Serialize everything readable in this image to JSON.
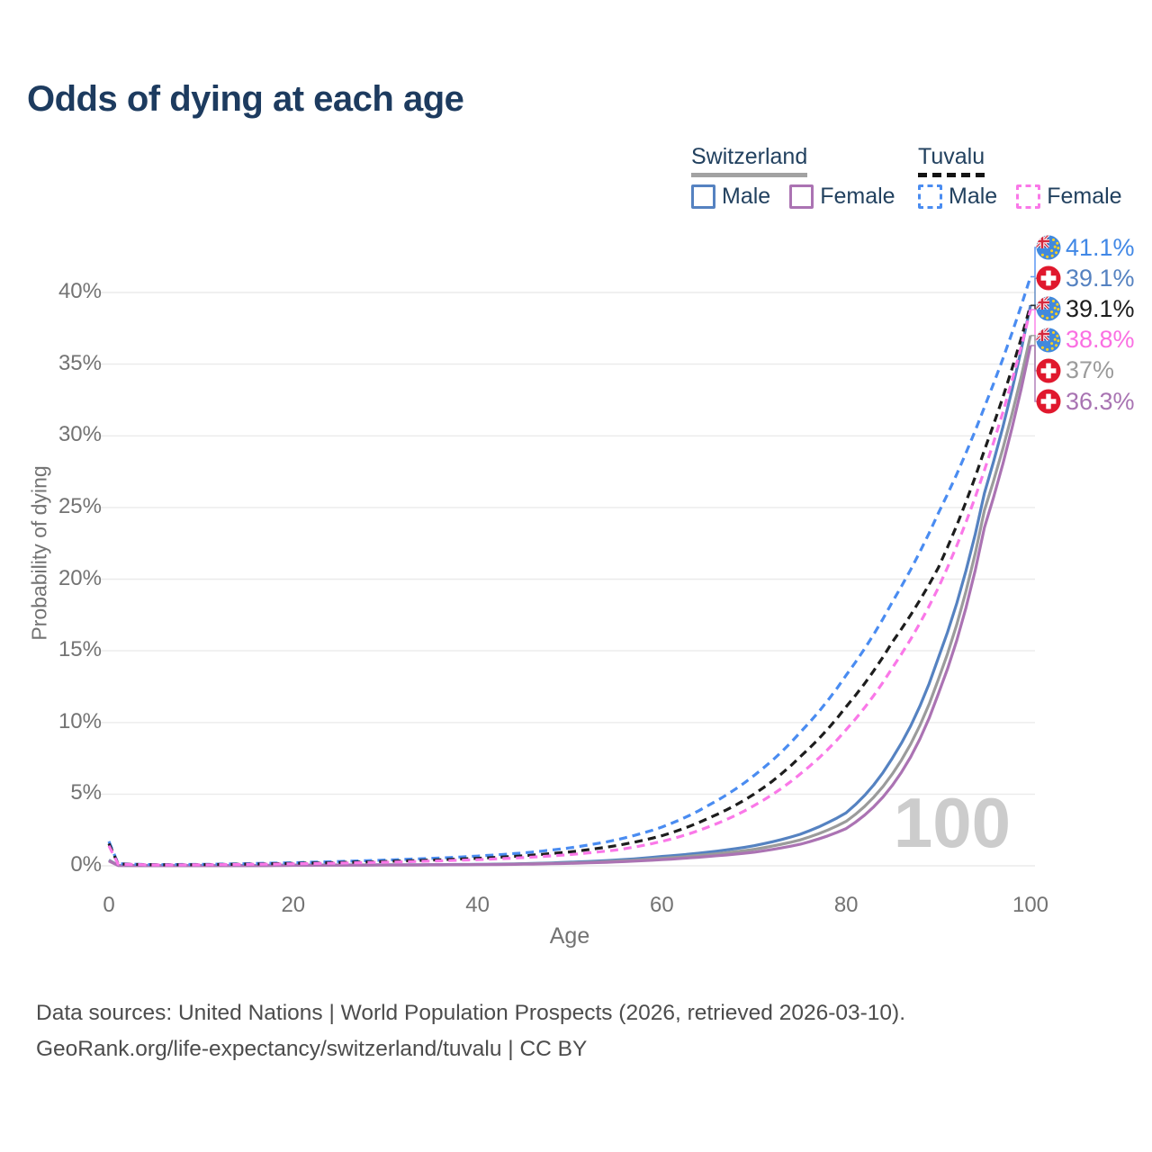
{
  "title": "Odds of dying at each age",
  "colors": {
    "title": "#1d3b5f",
    "legend_text": "#22415f",
    "axis_text": "#737373",
    "grid": "#ebebeb",
    "watermark": "#cccccc",
    "footer_text": "#4c4c4c"
  },
  "legend": {
    "groups": [
      {
        "label": "Switzerland",
        "underline_style": "solid",
        "underline_color": "#a2a2a2",
        "items": [
          {
            "label": "Male",
            "color": "#5582c1",
            "dashed": false
          },
          {
            "label": "Female",
            "color": "#ab73b3",
            "dashed": false
          }
        ]
      },
      {
        "label": "Tuvalu",
        "underline_style": "dashed",
        "underline_color": "#141414",
        "items": [
          {
            "label": "Male",
            "color": "#4a8cf1",
            "dashed": true
          },
          {
            "label": "Female",
            "color": "#fa78e8",
            "dashed": true
          }
        ]
      }
    ]
  },
  "chart_data": {
    "type": "line",
    "title": "Odds of dying at each age",
    "xlabel": "Age",
    "ylabel": "Probability of dying",
    "x_ticks": [
      0,
      20,
      40,
      60,
      80,
      100
    ],
    "y_ticks": [
      0,
      5,
      10,
      15,
      20,
      25,
      30,
      35,
      40
    ],
    "y_tick_suffix": "%",
    "xlim": [
      0,
      100
    ],
    "ylim": [
      0,
      43
    ],
    "grid": "horizontal",
    "legend_position": "top-right",
    "watermark": "100",
    "ages": [
      0,
      1,
      5,
      10,
      15,
      20,
      25,
      30,
      35,
      40,
      45,
      50,
      55,
      60,
      65,
      70,
      75,
      80,
      85,
      90,
      95,
      100
    ],
    "series": [
      {
        "id": "tuvalu-male",
        "name": "Tuvalu Male",
        "country": "Tuvalu",
        "sex": "Male",
        "color": "#4a8cf1",
        "dashed": true,
        "flag": "tuvalu-flag-icon",
        "end_label": "41.1%",
        "end_value": 41.1,
        "label_color": "#4188e6",
        "values": [
          1.7,
          0.15,
          0.08,
          0.1,
          0.15,
          0.22,
          0.3,
          0.4,
          0.52,
          0.68,
          0.9,
          1.25,
          1.8,
          2.7,
          4.2,
          6.3,
          9.3,
          13.3,
          18.4,
          24.6,
          32.0,
          41.1
        ]
      },
      {
        "id": "switzerland-male",
        "name": "Switzerland Male",
        "country": "Switzerland",
        "sex": "Male",
        "color": "#5582c1",
        "dashed": false,
        "flag": "switzerland-flag-icon",
        "end_label": "39.1%",
        "end_value": 39.1,
        "label_color": "#5582c1",
        "values": [
          0.4,
          0.03,
          0.01,
          0.01,
          0.02,
          0.05,
          0.06,
          0.07,
          0.08,
          0.1,
          0.15,
          0.25,
          0.4,
          0.65,
          0.95,
          1.4,
          2.2,
          3.7,
          7.5,
          14.5,
          26.0,
          39.1
        ]
      },
      {
        "id": "tuvalu-total",
        "name": "Tuvalu (both sexes)",
        "country": "Tuvalu",
        "sex": "Both",
        "color": "#1d1d1d",
        "dashed": true,
        "flag": "tuvalu-flag-icon",
        "end_label": "39.1%",
        "end_value": 39.1,
        "label_color": "#1d1d1d",
        "values": [
          1.55,
          0.13,
          0.07,
          0.08,
          0.12,
          0.17,
          0.23,
          0.3,
          0.4,
          0.52,
          0.7,
          0.97,
          1.4,
          2.1,
          3.3,
          5.0,
          7.6,
          11.1,
          15.6,
          20.8,
          29.0,
          39.1
        ]
      },
      {
        "id": "tuvalu-female",
        "name": "Tuvalu Female",
        "country": "Tuvalu",
        "sex": "Female",
        "color": "#fa78e8",
        "dashed": true,
        "flag": "tuvalu-flag-icon",
        "end_label": "38.8%",
        "end_value": 38.8,
        "label_color": "#fa6fe2",
        "values": [
          1.4,
          0.12,
          0.06,
          0.07,
          0.1,
          0.14,
          0.19,
          0.25,
          0.33,
          0.43,
          0.57,
          0.78,
          1.1,
          1.7,
          2.7,
          4.2,
          6.4,
          9.5,
          13.8,
          19.4,
          27.6,
          38.8
        ]
      },
      {
        "id": "switzerland-total",
        "name": "Switzerland (both sexes)",
        "country": "Switzerland",
        "sex": "Both",
        "color": "#9b9b9b",
        "dashed": false,
        "flag": "switzerland-flag-icon",
        "end_label": "37%",
        "end_value": 37.0,
        "label_color": "#9b9b9b",
        "values": [
          0.37,
          0.03,
          0.01,
          0.01,
          0.02,
          0.04,
          0.05,
          0.06,
          0.07,
          0.09,
          0.13,
          0.2,
          0.32,
          0.52,
          0.78,
          1.15,
          1.8,
          3.1,
          6.4,
          13.0,
          24.8,
          37.0
        ]
      },
      {
        "id": "switzerland-female",
        "name": "Switzerland Female",
        "country": "Switzerland",
        "sex": "Female",
        "color": "#ab73b3",
        "dashed": false,
        "flag": "switzerland-flag-icon",
        "end_label": "36.3%",
        "end_value": 36.3,
        "label_color": "#a873b2",
        "values": [
          0.33,
          0.02,
          0.01,
          0.01,
          0.01,
          0.03,
          0.04,
          0.05,
          0.06,
          0.08,
          0.11,
          0.17,
          0.27,
          0.43,
          0.65,
          0.95,
          1.5,
          2.6,
          5.6,
          12.0,
          23.6,
          36.3
        ]
      }
    ]
  },
  "footer": {
    "line1": "Data sources: United Nations | World Population Prospects (2026, retrieved 2026-03-10).",
    "line2": "GeoRank.org/life-expectancy/switzerland/tuvalu | CC BY"
  }
}
